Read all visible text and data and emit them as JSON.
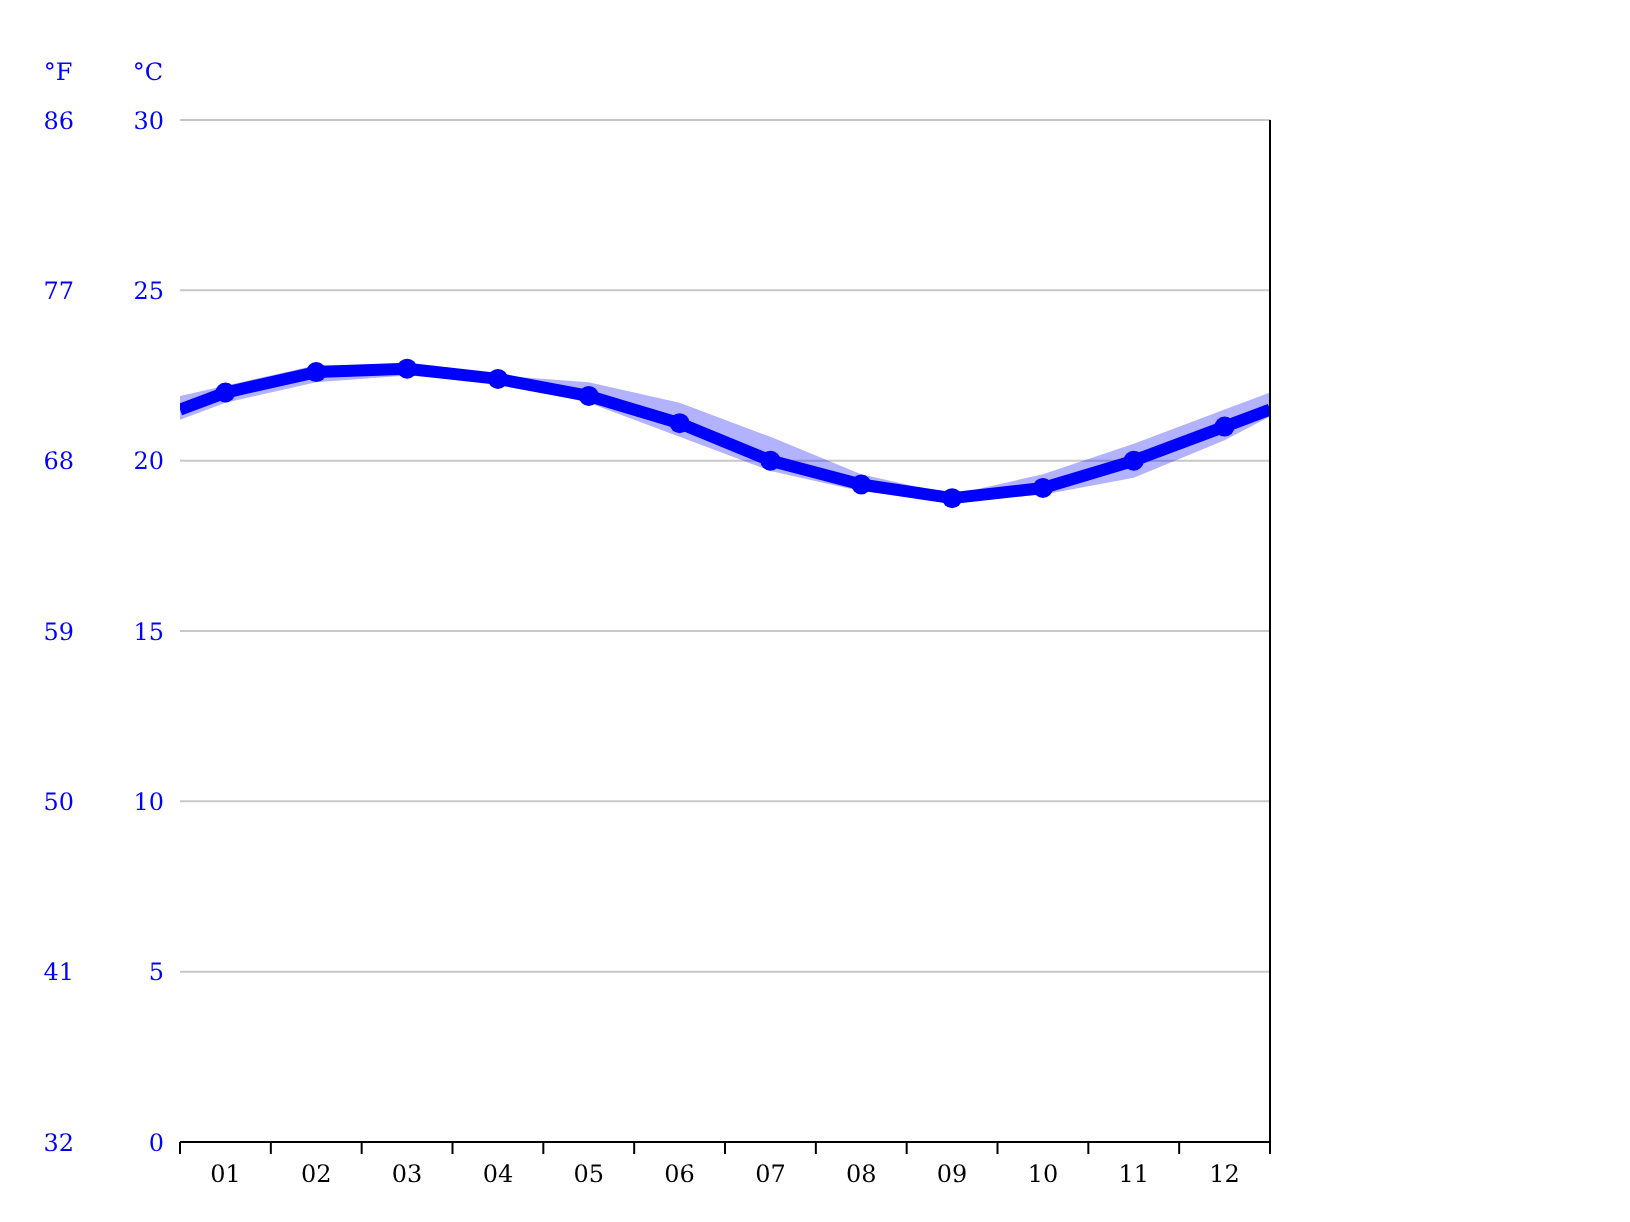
{
  "chart_data": {
    "type": "line",
    "ylabel": "°C",
    "y2label": "°F",
    "x": [
      0.5,
      1,
      2,
      3,
      4,
      5,
      6,
      7,
      8,
      9,
      10,
      11,
      12,
      12.5
    ],
    "xlim": [
      0.5,
      12.5
    ],
    "xticks": [
      {
        "value": 0.5,
        "label": null
      },
      {
        "value": 1,
        "label": "01"
      },
      {
        "value": 1.5,
        "label": null
      },
      {
        "value": 2,
        "label": "02"
      },
      {
        "value": 2.5,
        "label": null
      },
      {
        "value": 3,
        "label": "03"
      },
      {
        "value": 3.5,
        "label": null
      },
      {
        "value": 4,
        "label": "04"
      },
      {
        "value": 4.5,
        "label": null
      },
      {
        "value": 5,
        "label": "05"
      },
      {
        "value": 5.5,
        "label": null
      },
      {
        "value": 6,
        "label": "06"
      },
      {
        "value": 6.5,
        "label": null
      },
      {
        "value": 7,
        "label": "07"
      },
      {
        "value": 7.5,
        "label": null
      },
      {
        "value": 8,
        "label": "08"
      },
      {
        "value": 8.5,
        "label": null
      },
      {
        "value": 9,
        "label": "09"
      },
      {
        "value": 9.5,
        "label": null
      },
      {
        "value": 10,
        "label": "10"
      },
      {
        "value": 10.5,
        "label": null
      },
      {
        "value": 11,
        "label": "11"
      },
      {
        "value": 11.5,
        "label": null
      },
      {
        "value": 12,
        "label": "12"
      },
      {
        "value": 12.5,
        "label": null
      }
    ],
    "ylim": [
      0,
      30
    ],
    "yticks": [
      0,
      5,
      10,
      15,
      20,
      25,
      30
    ],
    "y2lim": [
      32,
      86
    ],
    "y2ticks": [
      32,
      41,
      50,
      59,
      68,
      77,
      86
    ],
    "grid": "y",
    "marker": "circle",
    "line_style": "solid",
    "series": [
      {
        "color": "#0000ff",
        "values": [
          21.5,
          22.0,
          22.6,
          22.7,
          22.4,
          21.9,
          21.1,
          20.0,
          19.3,
          18.9,
          19.2,
          20.0,
          21.0,
          21.5
        ],
        "lower": [
          21.2,
          21.7,
          22.3,
          22.5,
          22.3,
          21.7,
          20.7,
          19.7,
          19.1,
          18.8,
          19.0,
          19.5,
          20.6,
          21.3
        ],
        "upper": [
          21.9,
          22.2,
          22.8,
          22.8,
          22.5,
          22.3,
          21.7,
          20.7,
          19.6,
          19.0,
          19.6,
          20.5,
          21.5,
          22.0
        ]
      }
    ]
  }
}
